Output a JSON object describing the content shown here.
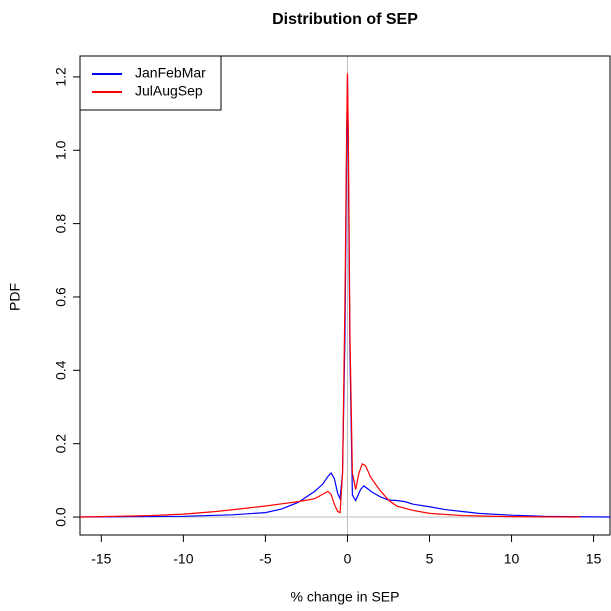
{
  "chart_data": {
    "type": "line",
    "title": "Distribution of SEP",
    "xlabel": "% change in SEP",
    "ylabel": "PDF",
    "xlim": [
      -16.3,
      16.0
    ],
    "ylim": [
      -0.049,
      1.257
    ],
    "xticks": [
      -15,
      -10,
      -5,
      0,
      5,
      10,
      15
    ],
    "yticks": [
      {
        "value": 0,
        "label": "0.0"
      },
      {
        "value": 0.2,
        "label": "0.2"
      },
      {
        "value": 0.4,
        "label": "0.4"
      },
      {
        "value": 0.6,
        "label": "0.6"
      },
      {
        "value": 0.8,
        "label": "0.8"
      },
      {
        "value": 1,
        "label": "1.0"
      },
      {
        "value": 1.2,
        "label": "1.2"
      }
    ],
    "hlines": [
      0
    ],
    "vlines": [
      0
    ],
    "legend": "top-left",
    "series": [
      {
        "name": "JanFebMar",
        "color": "#0000ff",
        "x": [
          -16.3,
          -15,
          -10,
          -7,
          -5,
          -4,
          -3,
          -2.5,
          -2,
          -1.5,
          -1.2,
          -1,
          -0.8,
          -0.6,
          -0.45,
          -0.3,
          -0.15,
          -0.05,
          0,
          0.05,
          0.15,
          0.3,
          0.5,
          0.8,
          1,
          1.5,
          2,
          2.5,
          3,
          3.5,
          4,
          5,
          6,
          7,
          8,
          10,
          12,
          15,
          16
        ],
        "values": [
          0,
          0.0005,
          0.002,
          0.006,
          0.012,
          0.022,
          0.04,
          0.055,
          0.07,
          0.09,
          0.11,
          0.12,
          0.105,
          0.065,
          0.05,
          0.12,
          0.5,
          1.0,
          1.2,
          1.0,
          0.45,
          0.06,
          0.045,
          0.075,
          0.085,
          0.068,
          0.055,
          0.046,
          0.045,
          0.042,
          0.035,
          0.028,
          0.02,
          0.015,
          0.01,
          0.005,
          0.002,
          0.0005,
          0
        ]
      },
      {
        "name": "JulAugSep",
        "color": "#ff0000",
        "x": [
          -16.3,
          -15,
          -12,
          -10,
          -8,
          -6,
          -5,
          -4,
          -3,
          -2,
          -1.5,
          -1.2,
          -1,
          -0.8,
          -0.6,
          -0.45,
          -0.3,
          -0.15,
          -0.05,
          0,
          0.05,
          0.15,
          0.3,
          0.5,
          0.7,
          0.9,
          1.1,
          1.4,
          1.7,
          2,
          2.5,
          3,
          4,
          5,
          7,
          10,
          12,
          14.2
        ],
        "values": [
          0,
          0.001,
          0.004,
          0.008,
          0.015,
          0.025,
          0.03,
          0.036,
          0.042,
          0.05,
          0.062,
          0.07,
          0.062,
          0.035,
          0.015,
          0.012,
          0.12,
          0.6,
          1.05,
          1.21,
          1.05,
          0.5,
          0.12,
          0.075,
          0.12,
          0.145,
          0.14,
          0.11,
          0.09,
          0.072,
          0.046,
          0.03,
          0.018,
          0.01,
          0.004,
          0.001,
          0.0005,
          0
        ]
      }
    ]
  }
}
